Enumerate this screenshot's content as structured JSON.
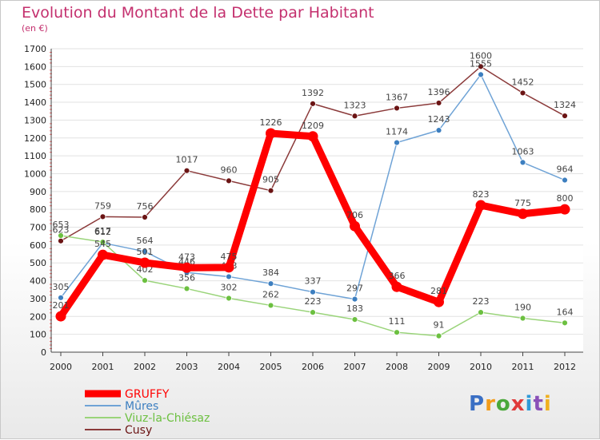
{
  "header": {
    "title": "Evolution du Montant de la Dette par Habitant",
    "subtitle": "(en €)"
  },
  "logo": {
    "text": "Proxiti",
    "colors": [
      "#3a6fc4",
      "#f39c1a",
      "#4aa83a",
      "#e03a3a",
      "#2f9ad8",
      "#8a50b8",
      "#f0b020"
    ]
  },
  "chart_data": {
    "type": "line",
    "title": "Evolution du Montant de la Dette par Habitant",
    "subtitle": "(en €)",
    "x": [
      "2000",
      "2001",
      "2002",
      "2003",
      "2004",
      "2005",
      "2006",
      "2007",
      "2008",
      "2009",
      "2010",
      "2011",
      "2012"
    ],
    "ylim": [
      0,
      1700
    ],
    "yticks": [
      0,
      100,
      200,
      300,
      400,
      500,
      600,
      700,
      800,
      900,
      1000,
      1100,
      1200,
      1300,
      1400,
      1500,
      1600,
      1700
    ],
    "grid": "horizontal",
    "legend_position": "bottom-left",
    "series": [
      {
        "name": "Cusy",
        "color": "#8b3a3a",
        "marker": "#6b1414",
        "values": [
          623,
          759,
          756,
          1017,
          960,
          905,
          1392,
          1323,
          1367,
          1396,
          1600,
          1452,
          1324
        ]
      },
      {
        "name": "Mûres",
        "color": "#6fa3d6",
        "marker": "#3d7fc0",
        "values": [
          305,
          612,
          564,
          446,
          423,
          384,
          337,
          297,
          1174,
          1243,
          1555,
          1063,
          964
        ]
      },
      {
        "name": "Viuz-la-Chiésaz",
        "color": "#9ad47a",
        "marker": "#6cc040",
        "values": [
          653,
          617,
          402,
          356,
          302,
          262,
          223,
          183,
          111,
          91,
          223,
          190,
          164
        ]
      },
      {
        "name": "GRUFFY",
        "color": "#ff0000",
        "marker": "#ff0000",
        "values": [
          201,
          545,
          501,
          473,
          475,
          1226,
          1209,
          706,
          366,
          281,
          823,
          775,
          800
        ]
      }
    ],
    "legend": [
      "GRUFFY",
      "Mûres",
      "Viuz-la-Chiésaz",
      "Cusy"
    ]
  }
}
